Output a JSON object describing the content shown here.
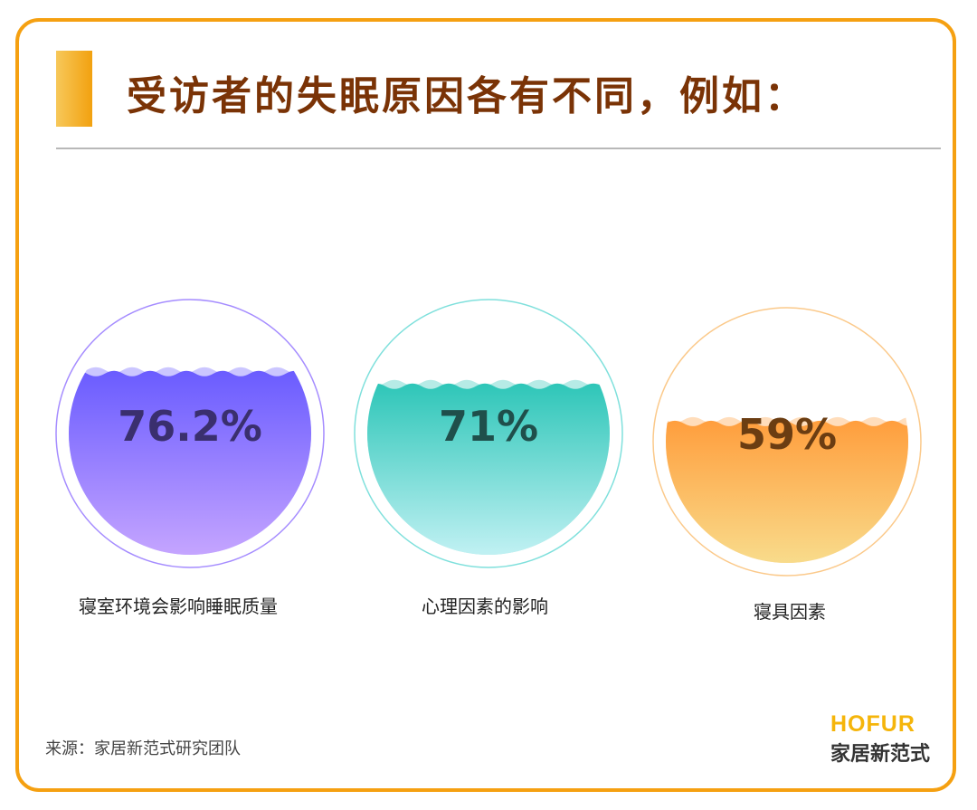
{
  "header": {
    "title": "受访者的失眠原因各有不同，例如："
  },
  "chart_data": {
    "type": "liquid-fill gauge",
    "title": "受访者的失眠原因各有不同，例如：",
    "unit": "%",
    "items": [
      {
        "label": "寝室环境会影响睡眠质量",
        "value": 76.2,
        "display": "76.2%",
        "color_top": "#6a5cff",
        "color_bottom": "#c9a8ff",
        "ring": "#a58cff",
        "text_color": "#3a2f6e"
      },
      {
        "label": "心理因素的影响",
        "value": 71,
        "display": "71%",
        "color_top": "#2ec6b8",
        "color_bottom": "#c8f3f6",
        "ring": "#7fe0dc",
        "text_color": "#1f4f4b"
      },
      {
        "label": "寝具因素",
        "value": 59,
        "display": "59%",
        "color_top": "#ff9e3d",
        "color_bottom": "#f8df90",
        "ring": "#fbc98a",
        "text_color": "#6b3d12"
      }
    ]
  },
  "footer": {
    "source": "来源：家居新范式研究团队"
  },
  "logo": {
    "en": "HOFUR",
    "cn": "家居新范式"
  }
}
